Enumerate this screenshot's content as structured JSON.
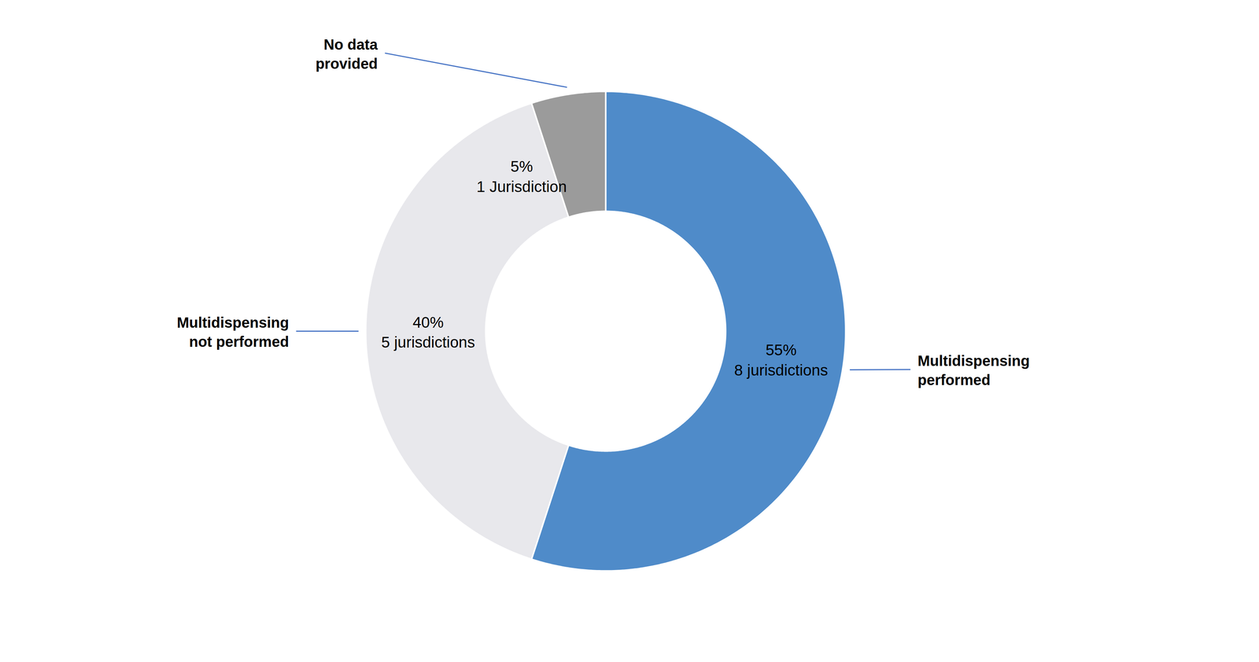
{
  "chart_data": {
    "type": "donut",
    "categories": [
      "Multidispensing\nperformed",
      "Multidispensing\nnot performed",
      "No data\nprovided"
    ],
    "values": [
      55,
      40,
      5
    ],
    "value_labels": [
      "55%\n8 jurisdictions",
      "40%\n5 jurisdictions",
      "5%\n1 Jurisdiction"
    ],
    "colors": [
      "#4F8BC9",
      "#E8E8EC",
      "#9B9B9B"
    ],
    "data_labels": true
  }
}
